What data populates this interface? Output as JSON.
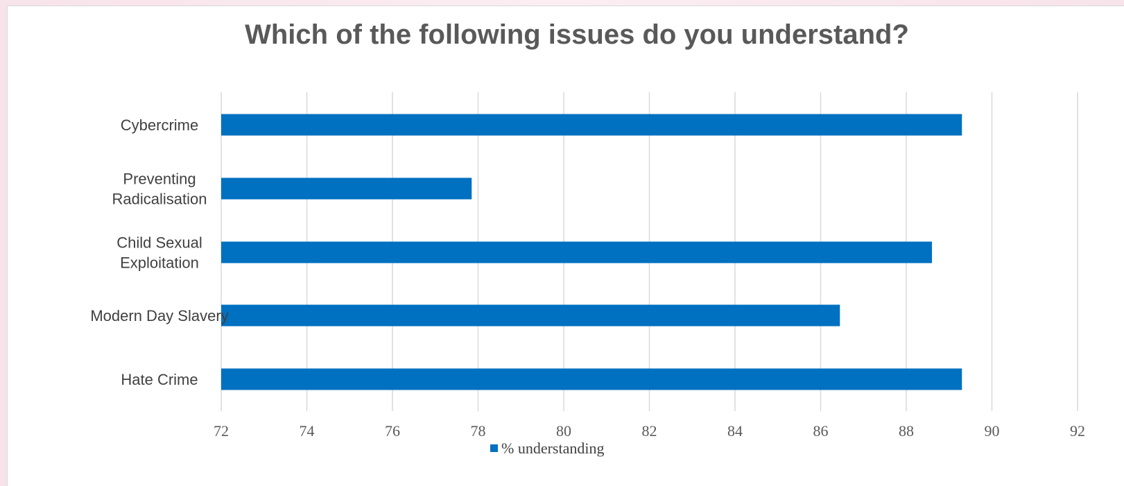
{
  "colors": {
    "bar": "#0070c0",
    "grid": "#d9d9d9",
    "title": "#595959"
  },
  "chart_data": {
    "type": "bar",
    "orientation": "horizontal",
    "title": "Which of the following issues do you understand?",
    "xlabel": "",
    "ylabel": "",
    "categories": [
      [
        "Cybercrime"
      ],
      [
        "Preventing",
        "Radicalisation"
      ],
      [
        "Child Sexual",
        "Exploitation"
      ],
      [
        "Modern Day Slavery"
      ],
      [
        "Hate Crime"
      ]
    ],
    "series": [
      {
        "name": "% understanding",
        "values": [
          89.3,
          77.85,
          88.6,
          86.45,
          89.3
        ]
      }
    ],
    "xlim": [
      72,
      92
    ],
    "xticks": [
      "72",
      "74",
      "76",
      "78",
      "80",
      "82",
      "84",
      "86",
      "88",
      "90",
      "92"
    ],
    "grid": true,
    "legend_position": "bottom"
  }
}
